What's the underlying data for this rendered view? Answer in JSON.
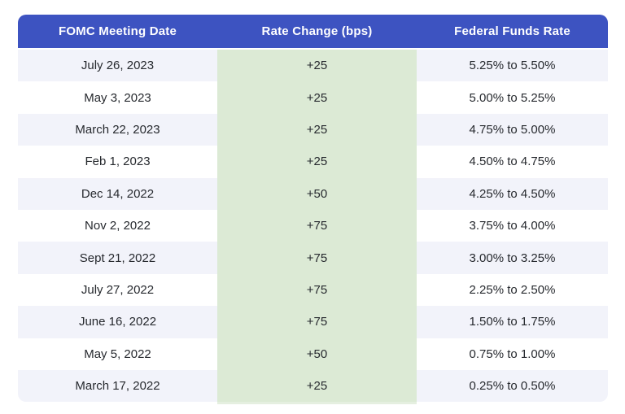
{
  "table": {
    "columns": [
      "FOMC Meeting Date",
      "Rate Change (bps)",
      "Federal Funds Rate"
    ],
    "rows": [
      {
        "date": "July 26, 2023",
        "change": "+25",
        "rate": "5.25% to 5.50%"
      },
      {
        "date": "May 3, 2023",
        "change": "+25",
        "rate": "5.00% to 5.25%"
      },
      {
        "date": "March 22, 2023",
        "change": "+25",
        "rate": "4.75% to 5.00%"
      },
      {
        "date": "Feb 1, 2023",
        "change": "+25",
        "rate": "4.50% to 4.75%"
      },
      {
        "date": "Dec 14, 2022",
        "change": "+50",
        "rate": "4.25% to 4.50%"
      },
      {
        "date": "Nov 2, 2022",
        "change": "+75",
        "rate": "3.75% to 4.00%"
      },
      {
        "date": "Sept 21, 2022",
        "change": "+75",
        "rate": "3.00% to 3.25%"
      },
      {
        "date": "July 27, 2022",
        "change": "+75",
        "rate": "2.25% to 2.50%"
      },
      {
        "date": "June 16, 2022",
        "change": "+75",
        "rate": "1.50% to 1.75%"
      },
      {
        "date": "May 5, 2022",
        "change": "+50",
        "rate": "0.75% to 1.00%"
      },
      {
        "date": "March 17, 2022",
        "change": "+25",
        "rate": "0.25% to 0.50%"
      }
    ]
  },
  "colors": {
    "header_bg": "#3D53C1",
    "header_text": "#FFFFFF",
    "change_column_bg": "#DCEAD5",
    "row_alt_bg": "#F2F3FA",
    "body_text": "#26292E"
  },
  "chart_data": {
    "type": "table",
    "title": "",
    "columns": [
      "FOMC Meeting Date",
      "Rate Change (bps)",
      "Federal Funds Rate"
    ],
    "rows": [
      [
        "July 26, 2023",
        "+25",
        "5.25% to 5.50%"
      ],
      [
        "May 3, 2023",
        "+25",
        "5.00% to 5.25%"
      ],
      [
        "March 22, 2023",
        "+25",
        "4.75% to 5.00%"
      ],
      [
        "Feb 1, 2023",
        "+25",
        "4.50% to 4.75%"
      ],
      [
        "Dec 14, 2022",
        "+50",
        "4.25% to 4.50%"
      ],
      [
        "Nov 2, 2022",
        "+75",
        "3.75% to 4.00%"
      ],
      [
        "Sept 21, 2022",
        "+75",
        "3.00% to 3.25%"
      ],
      [
        "July 27, 2022",
        "+75",
        "2.25% to 2.50%"
      ],
      [
        "June 16, 2022",
        "+75",
        "1.50% to 1.75%"
      ],
      [
        "May 5, 2022",
        "+50",
        "0.75% to 1.00%"
      ],
      [
        "March 17, 2022",
        "+25",
        "0.25% to 0.50%"
      ]
    ],
    "rate_change_values_bps": [
      25,
      25,
      25,
      25,
      50,
      75,
      75,
      75,
      75,
      50,
      25
    ],
    "layout_hints": {
      "header_style": "solid blue bar, white bold text, rounded top corners",
      "row_striping": "odd rows lavender, even rows white (columns 1 and 3 only)",
      "middle_column": "continuous light green background",
      "alignment": "all cells center-aligned"
    }
  }
}
